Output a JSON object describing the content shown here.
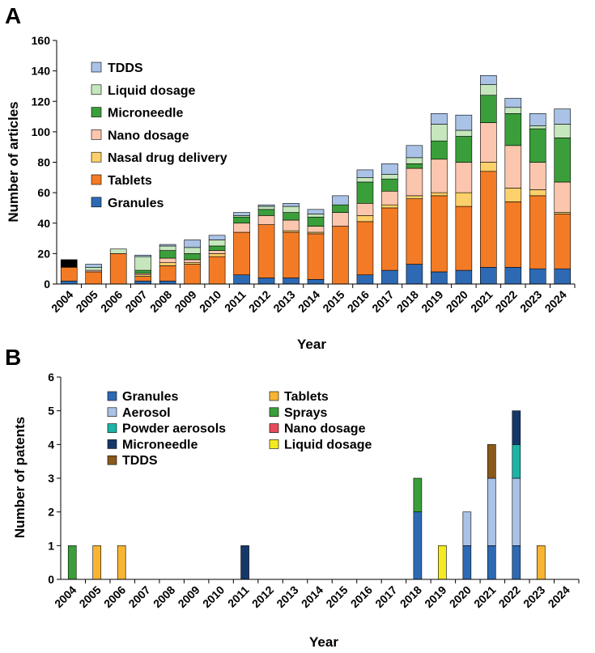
{
  "chart_data": [
    {
      "panel": "A",
      "type": "bar",
      "stacked": true,
      "title": "",
      "xlabel": "Year",
      "ylabel": "Number of articles",
      "ylim": [
        0,
        160
      ],
      "yticks": [
        0,
        20,
        40,
        60,
        80,
        100,
        120,
        140,
        160
      ],
      "categories": [
        "2004",
        "2005",
        "2006",
        "2007",
        "2008",
        "2009",
        "2010",
        "2011",
        "2012",
        "2013",
        "2014",
        "2015",
        "2016",
        "2017",
        "2018",
        "2019",
        "2020",
        "2021",
        "2022",
        "2023",
        "2024"
      ],
      "legend_position": "top-left",
      "series": [
        {
          "name": "Granules",
          "color": "#2e6ab4",
          "values": [
            2,
            0,
            0,
            2,
            2,
            0,
            0,
            6,
            4,
            4,
            3,
            0,
            6,
            9,
            13,
            8,
            9,
            11,
            11,
            10,
            10
          ]
        },
        {
          "name": "Tablets",
          "color": "#f47b25",
          "values": [
            9,
            8,
            20,
            3,
            10,
            13,
            18,
            28,
            35,
            30,
            30,
            38,
            35,
            41,
            43,
            50,
            42,
            63,
            43,
            48,
            36
          ]
        },
        {
          "name": "Nasal drug delivery",
          "color": "#fcd06a",
          "values": [
            0,
            0,
            0,
            1,
            2,
            1,
            2,
            0,
            0,
            1,
            1,
            0,
            4,
            2,
            2,
            2,
            9,
            6,
            9,
            4,
            1
          ]
        },
        {
          "name": "Nano dosage",
          "color": "#fbc6ad",
          "values": [
            0,
            1,
            0,
            1,
            3,
            2,
            2,
            6,
            6,
            7,
            4,
            9,
            8,
            9,
            18,
            22,
            20,
            26,
            28,
            18,
            20
          ]
        },
        {
          "name": "Microneedle",
          "color": "#3a9f3a",
          "values": [
            0,
            0,
            0,
            2,
            5,
            4,
            3,
            4,
            4,
            5,
            6,
            5,
            14,
            8,
            3,
            12,
            17,
            18,
            21,
            22,
            29
          ]
        },
        {
          "name": "Liquid dosage",
          "color": "#c6e6bd",
          "values": [
            0,
            2,
            3,
            9,
            3,
            4,
            4,
            1,
            2,
            4,
            2,
            0,
            3,
            3,
            4,
            11,
            4,
            7,
            4,
            2,
            9
          ]
        },
        {
          "name": "TDDS",
          "color": "#a9c2e5",
          "values": [
            0,
            2,
            0,
            1,
            1,
            5,
            3,
            2,
            1,
            2,
            3,
            6,
            5,
            7,
            8,
            7,
            10,
            6,
            6,
            8,
            10
          ]
        }
      ],
      "extra_segments": [
        {
          "category": "2004",
          "color": "#000000",
          "value": 5
        }
      ]
    },
    {
      "panel": "B",
      "type": "bar",
      "stacked": true,
      "title": "",
      "xlabel": "Year",
      "ylabel": "Number of patents",
      "ylim": [
        0,
        6
      ],
      "yticks": [
        0,
        1,
        2,
        3,
        4,
        5,
        6
      ],
      "categories": [
        "2004",
        "2005",
        "2006",
        "2007",
        "2008",
        "2009",
        "2010",
        "2011",
        "2012",
        "2013",
        "2014",
        "2015",
        "2016",
        "2017",
        "2018",
        "2019",
        "2020",
        "2021",
        "2022",
        "2023",
        "2024"
      ],
      "legend_position": "top-left",
      "legend_columns": [
        [
          "Granules",
          "Aerosol",
          "Powder aerosols",
          "Microneedle",
          "TDDS"
        ],
        [
          "Tablets",
          "Sprays",
          "Nano dosage",
          "Liquid  dosage"
        ]
      ],
      "series": [
        {
          "name": "Granules",
          "color": "#2e6ab4",
          "values": [
            0,
            0,
            0,
            0,
            0,
            0,
            0,
            0,
            0,
            0,
            0,
            0,
            0,
            0,
            2,
            0,
            1,
            1,
            1,
            0,
            0
          ]
        },
        {
          "name": "Tablets",
          "color": "#f7b533",
          "values": [
            0,
            1,
            1,
            0,
            0,
            0,
            0,
            0,
            0,
            0,
            0,
            0,
            0,
            0,
            0,
            0,
            0,
            0,
            0,
            1,
            0
          ]
        },
        {
          "name": "Aerosol",
          "color": "#a9c2e5",
          "values": [
            0,
            0,
            0,
            0,
            0,
            0,
            0,
            0,
            0,
            0,
            0,
            0,
            0,
            0,
            0,
            0,
            1,
            2,
            2,
            0,
            0
          ]
        },
        {
          "name": "Sprays",
          "color": "#3a9f3a",
          "values": [
            1,
            0,
            0,
            0,
            0,
            0,
            0,
            0,
            0,
            0,
            0,
            0,
            0,
            0,
            1,
            0,
            0,
            0,
            0,
            0,
            0
          ]
        },
        {
          "name": "Powder aerosols",
          "color": "#1ab5a6",
          "values": [
            0,
            0,
            0,
            0,
            0,
            0,
            0,
            0,
            0,
            0,
            0,
            0,
            0,
            0,
            0,
            0,
            0,
            0,
            1,
            0,
            0
          ]
        },
        {
          "name": "Nano dosage",
          "color": "#e84b5a",
          "values": [
            0,
            0,
            0,
            0,
            0,
            0,
            0,
            0,
            0,
            0,
            0,
            0,
            0,
            0,
            0,
            0,
            0,
            0,
            0,
            0,
            0
          ]
        },
        {
          "name": "Microneedle",
          "color": "#15386b",
          "values": [
            0,
            0,
            0,
            0,
            0,
            0,
            0,
            1,
            0,
            0,
            0,
            0,
            0,
            0,
            0,
            0,
            0,
            0,
            1,
            0,
            0
          ]
        },
        {
          "name": "Liquid  dosage",
          "color": "#f5ea1f",
          "values": [
            0,
            0,
            0,
            0,
            0,
            0,
            0,
            0,
            0,
            0,
            0,
            0,
            0,
            0,
            0,
            1,
            0,
            0,
            0,
            0,
            0
          ]
        },
        {
          "name": "TDDS",
          "color": "#8a5a1c",
          "values": [
            0,
            0,
            0,
            0,
            0,
            0,
            0,
            0,
            0,
            0,
            0,
            0,
            0,
            0,
            0,
            0,
            0,
            1,
            0,
            0,
            0
          ]
        }
      ]
    }
  ]
}
